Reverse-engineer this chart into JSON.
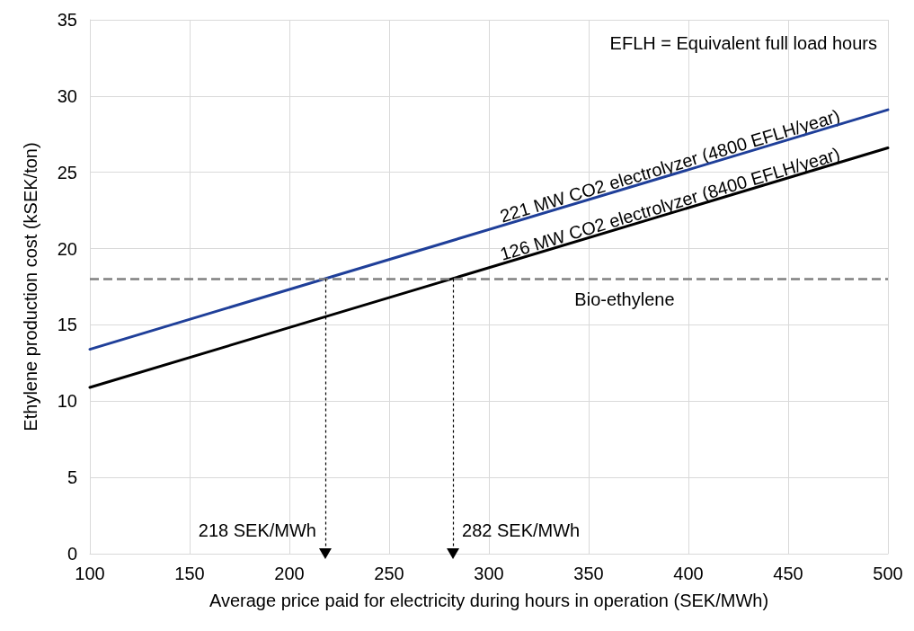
{
  "chart_data": {
    "type": "line",
    "xlabel": "Average price paid for electricity during hours in operation (SEK/MWh)",
    "ylabel": "Ethylene production cost (kSEK/ton)",
    "x": [
      100,
      500
    ],
    "series": [
      {
        "name": "221 MW CO2 electrolyzer (4800 EFLH/year)",
        "color": "#1f3f99",
        "values": [
          13.4,
          29.1
        ]
      },
      {
        "name": "126 MW CO2 electrolyzer (8400 EFLH/year)",
        "color": "#000000",
        "values": [
          10.9,
          26.6
        ]
      }
    ],
    "xlim": [
      100,
      500
    ],
    "xticks": [
      100,
      150,
      200,
      250,
      300,
      350,
      400,
      450,
      500
    ],
    "ylim": [
      0,
      35
    ],
    "yticks": [
      0,
      5,
      10,
      15,
      20,
      25,
      30,
      35
    ],
    "grid": true,
    "legend": false,
    "marker": "none",
    "line_style": "solid",
    "ref_lines": [
      {
        "axis": "y",
        "value": 18,
        "label": "Bio-ethylene",
        "color": "#808080",
        "line_style": "dashed"
      }
    ],
    "annotations": [
      {
        "text": "218 SEK/MWh",
        "x": 218,
        "y": 0
      },
      {
        "text": "282 SEK/MWh",
        "x": 282,
        "y": 0
      },
      "EFLH = Equivalent full load hours"
    ]
  }
}
